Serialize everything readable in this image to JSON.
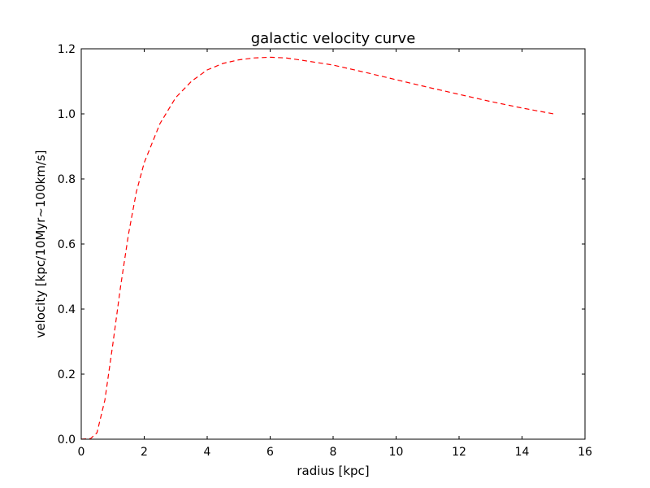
{
  "chart_data": {
    "type": "line",
    "title": "galactic velocity curve",
    "xlabel": "radius [kpc]",
    "ylabel": "velocity [kpc/10Myr~100km/s]",
    "xlim": [
      0,
      16
    ],
    "ylim": [
      0,
      1.2
    ],
    "xticks": [
      0,
      2,
      4,
      6,
      8,
      10,
      12,
      14,
      16
    ],
    "xtick_labels": [
      "0",
      "2",
      "4",
      "6",
      "8",
      "10",
      "12",
      "14",
      "16"
    ],
    "yticks": [
      0,
      0.2,
      0.4,
      0.6,
      0.8,
      1.0,
      1.2
    ],
    "ytick_labels": [
      "0.0",
      "0.2",
      "0.4",
      "0.6",
      "0.8",
      "1.0",
      "1.2"
    ],
    "grid": false,
    "series": [
      {
        "color": "#ff0000",
        "line_style": "dashed",
        "x": [
          0,
          0.3,
          0.5,
          0.75,
          1.0,
          1.25,
          1.5,
          1.75,
          2.0,
          2.5,
          3.0,
          3.5,
          4.0,
          4.5,
          5.0,
          5.5,
          6.0,
          6.5,
          7.0,
          8.0,
          9.0,
          10.0,
          11.0,
          12.0,
          13.0,
          14.0,
          15.0
        ],
        "y": [
          0.0,
          0.002,
          0.02,
          0.12,
          0.29,
          0.47,
          0.63,
          0.76,
          0.85,
          0.97,
          1.05,
          1.1,
          1.135,
          1.155,
          1.166,
          1.172,
          1.174,
          1.172,
          1.165,
          1.15,
          1.128,
          1.105,
          1.082,
          1.06,
          1.038,
          1.018,
          1.0
        ]
      }
    ]
  }
}
